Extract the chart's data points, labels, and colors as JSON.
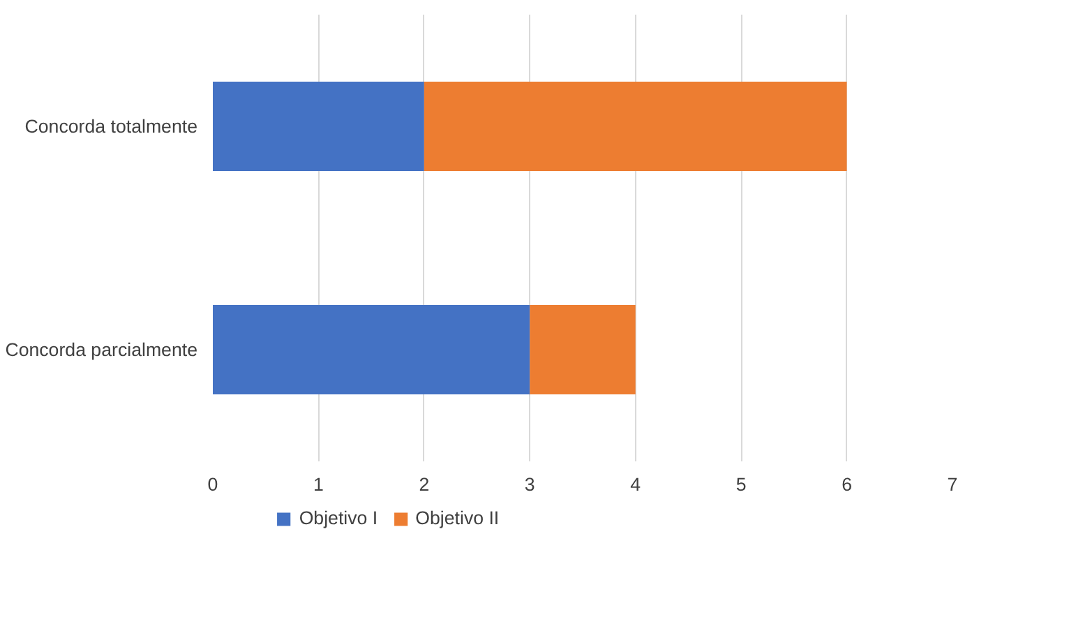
{
  "chart_data": {
    "type": "bar",
    "orientation": "horizontal",
    "stacked": true,
    "categories": [
      "Concorda totalmente",
      "Concorda parcialmente"
    ],
    "series": [
      {
        "name": "Objetivo I",
        "color": "#4472c4",
        "values": [
          2,
          3
        ]
      },
      {
        "name": "Objetivo II",
        "color": "#ed7d31",
        "values": [
          4,
          1
        ]
      }
    ],
    "xlim": [
      0,
      7
    ],
    "xticks": [
      0,
      1,
      2,
      3,
      4,
      5,
      6,
      7
    ],
    "grid": "x",
    "legend": "bottom"
  }
}
